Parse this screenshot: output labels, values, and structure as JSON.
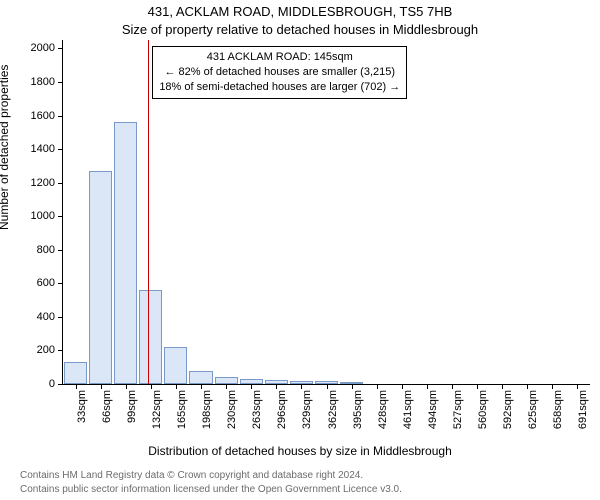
{
  "chart": {
    "type": "histogram",
    "title_line1": "431, ACKLAM ROAD, MIDDLESBROUGH, TS5 7HB",
    "title_line2": "Size of property relative to detached houses in Middlesbrough",
    "title_fontsize": 13,
    "ylabel": "Number of detached properties",
    "xlabel": "Distribution of detached houses by size in Middlesbrough",
    "label_fontsize": 12,
    "tick_fontsize": 11,
    "background_color": "#ffffff",
    "axis_color": "#000000",
    "bar_fill": "#dbe7f6",
    "bar_stroke": "#7999c9",
    "marker_line_color": "#cc0000",
    "yticks": [
      0,
      200,
      400,
      600,
      800,
      1000,
      1200,
      1400,
      1600,
      1800,
      2000
    ],
    "ylim": [
      0,
      2050
    ],
    "categories": [
      "33sqm",
      "66sqm",
      "99sqm",
      "132sqm",
      "165sqm",
      "198sqm",
      "230sqm",
      "263sqm",
      "296sqm",
      "329sqm",
      "362sqm",
      "395sqm",
      "428sqm",
      "461sqm",
      "494sqm",
      "527sqm",
      "560sqm",
      "592sqm",
      "625sqm",
      "658sqm",
      "691sqm"
    ],
    "values": [
      130,
      1270,
      1560,
      560,
      220,
      80,
      40,
      30,
      25,
      18,
      20,
      8,
      0,
      0,
      0,
      0,
      0,
      0,
      0,
      0,
      0
    ],
    "bar_width_ratio": 0.92,
    "marker_category_index": 3,
    "marker_position_in_bin": 0.4,
    "annotation": {
      "line1": "431 ACKLAM ROAD: 145sqm",
      "line2": "← 82% of detached houses are smaller (3,215)",
      "line3": "18% of semi-detached houses are larger (702) →",
      "border_color": "#000000",
      "background": "#ffffff",
      "fontsize": 11
    },
    "footer": {
      "line1": "Contains HM Land Registry data © Crown copyright and database right 2024.",
      "line2": "Contains public sector information licensed under the Open Government Licence v3.0.",
      "text_color": "#6c6c6c",
      "fontsize": 10
    }
  }
}
